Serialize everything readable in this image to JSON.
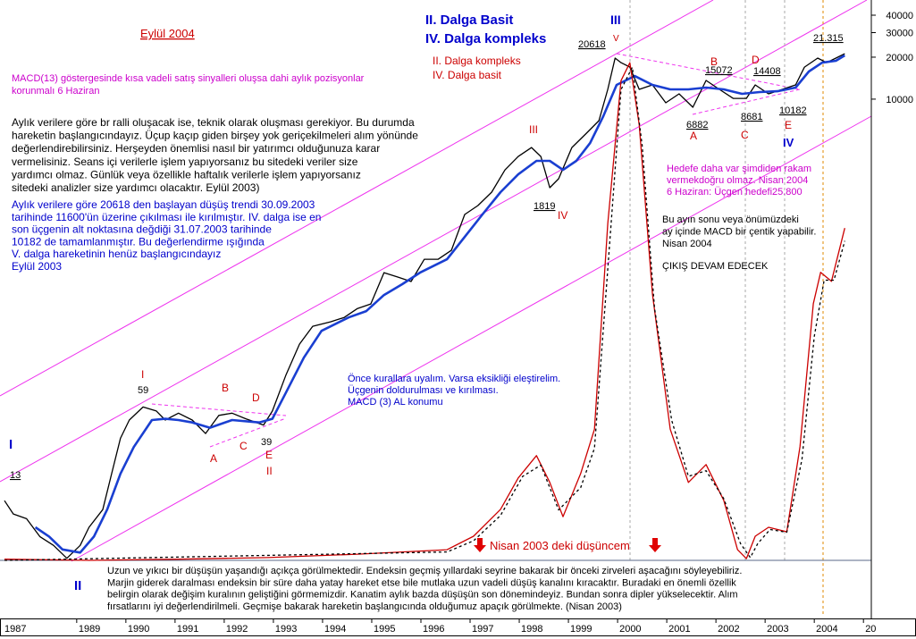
{
  "chart_data": {
    "type": "line",
    "log": true,
    "xlim": [
      1987.44,
      2005.16
    ],
    "xticks": [
      1987,
      1989,
      1990,
      1991,
      1992,
      1993,
      1994,
      1995,
      1996,
      1997,
      1998,
      1999,
      2000,
      2001,
      2002,
      2003,
      2004,
      {
        "value": 2005,
        "label": "20"
      }
    ],
    "ylim": [
      5,
      51400
    ],
    "yticks": [
      10000,
      20000,
      30000,
      40000
    ],
    "y2lim": [
      0,
      100
    ],
    "series": [
      {
        "color": "#000000",
        "x": [
          1987.53,
          1987.71,
          1987.98,
          1988.25,
          1988.53,
          1988.8,
          1989.07,
          1989.25,
          1989.53,
          1989.71,
          1989.89,
          1990.07,
          1990.35,
          1990.62,
          1990.8,
          1991.07,
          1991.35,
          1991.62,
          1991.89,
          1992.16,
          1992.44,
          1992.8,
          1992.98,
          1993.25,
          1993.53,
          1993.8,
          1994.16,
          1994.44,
          1994.71,
          1994.98,
          1995.25,
          1995.53,
          1995.8,
          1996.07,
          1996.35,
          1996.62,
          1996.89,
          1997.16,
          1997.44,
          1997.71,
          1997.98,
          1998.25,
          1998.44,
          1998.62,
          1998.8,
          1999.07,
          1999.35,
          1999.62,
          1999.8,
          1999.95,
          2000.07,
          2000.25,
          2000.44,
          2000.71,
          2000.98,
          2001.25,
          2001.53,
          2001.8,
          2002.07,
          2002.35,
          2002.62,
          2002.8,
          2003.07,
          2003.35,
          2003.62,
          2003.8,
          2004.07,
          2004.25,
          2004.44,
          2004.62
        ],
        "values": [
          13.2,
          10.6,
          9.8,
          7.3,
          6.3,
          5.1,
          6.3,
          8.5,
          11.4,
          20.6,
          37,
          50,
          62,
          58,
          50,
          56,
          50,
          40,
          54,
          56,
          51,
          46,
          58,
          104,
          175,
          235,
          253,
          272,
          315,
          340,
          570,
          530,
          492,
          711,
          711,
          824,
          1489,
          1726,
          2153,
          3110,
          3881,
          4498,
          3881,
          2318,
          2685,
          4498,
          5616,
          7012,
          11750,
          19690,
          18280,
          16980,
          11750,
          12650,
          9418,
          10910,
          8750,
          13620,
          11750,
          10130,
          10130,
          12650,
          10910,
          11750,
          12650,
          16980,
          19690,
          18280,
          19690,
          21180
        ]
      },
      {
        "color": "#1a3fd1",
        "x": [
          1988.16,
          1988.44,
          1988.71,
          1989.07,
          1989.35,
          1989.62,
          1989.89,
          1990.16,
          1990.53,
          1990.8,
          1991.07,
          1991.35,
          1991.71,
          1992.16,
          1992.71,
          1992.98,
          1993.25,
          1993.62,
          1993.98,
          1994.53,
          1994.89,
          1995.25,
          1995.62,
          1995.98,
          1996.53,
          1996.89,
          1997.25,
          1997.62,
          1997.98,
          1998.35,
          1998.62,
          1998.89,
          1999.16,
          1999.44,
          1999.71,
          1999.98,
          2000.35,
          2000.71,
          2001.07,
          2001.44,
          2001.8,
          2002.16,
          2002.53,
          2002.89,
          2003.25,
          2003.62,
          2003.89,
          2004.16,
          2004.44,
          2004.62
        ],
        "values": [
          8.5,
          7.3,
          5.9,
          5.6,
          7.3,
          11.4,
          20.6,
          32,
          50,
          51,
          50,
          48,
          44,
          50,
          48,
          51,
          78,
          140,
          218,
          272,
          302,
          394,
          471,
          570,
          711,
          1028,
          1489,
          2153,
          2890,
          3608,
          3608,
          3110,
          3608,
          4842,
          7551,
          12650,
          14650,
          12650,
          11750,
          11750,
          12100,
          11750,
          10910,
          11250,
          11400,
          12100,
          15780,
          18280,
          18830,
          20600
        ]
      },
      {
        "color": "#cc0000",
        "axis": "y2",
        "x": [
          1987.53,
          1989.25,
          1991.07,
          1992.89,
          1994.71,
          1996.53,
          1997.07,
          1997.62,
          1997.98,
          1998.35,
          1998.62,
          1998.89,
          1999.25,
          1999.53,
          1999.8,
          2000.07,
          2000.25,
          2000.44,
          2000.71,
          2001.07,
          2001.44,
          2001.8,
          2002.16,
          2002.44,
          2002.62,
          2002.8,
          2003.07,
          2003.44,
          2003.71,
          2003.98,
          2004.13,
          2004.35,
          2004.62
        ],
        "values": [
          0.2,
          0,
          0.2,
          0.5,
          1.1,
          1.9,
          4.3,
          9.1,
          14.7,
          18.7,
          13.9,
          7.8,
          15.5,
          23.4,
          60.1,
          85.6,
          88.8,
          77.7,
          47.5,
          23.4,
          13.9,
          17.1,
          10.7,
          1.9,
          0.3,
          4.3,
          5.9,
          5.1,
          20.3,
          45.8,
          51.4,
          49.8,
          59.3
        ]
      },
      {
        "color": "#000000",
        "axis": "y2",
        "dashed": true,
        "x": [
          1987.53,
          1996.53,
          1997.07,
          1997.62,
          1998.07,
          1998.44,
          1998.8,
          1999.25,
          1999.53,
          1999.8,
          2000.07,
          2000.3,
          2000.5,
          2000.75,
          2001.1,
          2001.44,
          2001.8,
          2002.16,
          2002.5,
          2002.7,
          2002.85,
          2003.1,
          2003.44,
          2003.75,
          2004.0,
          2004.2,
          2004.4,
          2004.62
        ],
        "values": [
          0,
          1.5,
          3.5,
          8,
          15,
          17,
          9,
          13,
          20,
          52,
          84,
          88,
          74,
          45,
          25,
          15,
          16,
          11,
          3,
          0.5,
          3,
          5.5,
          5,
          18,
          40,
          50,
          50,
          57
        ]
      }
    ],
    "notes": [
      {
        "color": "#cc0000",
        "lines": [
          "Eylül 2004"
        ]
      },
      {
        "color": "#0000cc",
        "lines": [
          "II.  Dalga Basit",
          "IV.  Dalga kompleks"
        ]
      },
      {
        "color": "#0000cc",
        "lines": [
          "III"
        ]
      },
      {
        "color": "#cc0000",
        "lines": [
          "II.  Dalga kompleks",
          "IV.  Dalga basit"
        ]
      },
      {
        "color": "#cc00cc",
        "lines": [
          "MACD(13) göstergesinde kısa vadeli satış sinyalleri oluşsa dahi  aylık pozisyonlar",
          "korunmalı 6 Haziran"
        ]
      },
      {
        "color": "#000000",
        "lines": [
          "Aylık verilere göre br ralli oluşacak ise, teknik olarak oluşması gerekiyor. Bu durumda",
          "hareketin başlangıcındayız. Üçup kaçıp giden birşey yok geriçekilmeleri alım yönünde",
          "değerlendirebilirsiniz. Herşeyden önemlisi nasıl bir yatırımcı olduğunuza karar",
          "vermelisiniz. Seans içi verilerle işlem yapıyorsanız bu sitedeki veriler size",
          "yardımcı olmaz. Günlük veya özellikle haftalık verilerle işlem yapıyorsanız",
          "sitedeki analizler size yardımcı olacaktır. Eylül 2003)"
        ]
      },
      {
        "color": "#0000cc",
        "lines": [
          "Aylık verilere göre 20618 den başlayan düşüş trendi 30.09.2003",
          "tarihinde 11600'ün üzerine çıkılması ile  kırılmıştır. IV. dalga ise en",
          "son üçgenin alt noktasına değdiği 31.07.2003   tarihinde",
          "10182 de tamamlanmıştır. Bu değerlendirme ışığında",
          "V. dalga hareketinin henüz başlangıcındayız",
          "Eylül 2003"
        ]
      },
      {
        "color": "#cc00cc",
        "lines": [
          "Hedefe daha var şimdiden rakam",
          "vermekdoğru olmaz. Nisan 2004",
          "6 Haziran: Üçgen hedefi25.800"
        ]
      },
      {
        "color": "#000000",
        "lines": [
          "Bu ayın sonu veya önümüzdeki",
          "ay içinde MACD bir çentik yapabilir.",
          "Nisan 2004"
        ]
      },
      {
        "color": "#000000",
        "lines": [
          "ÇIKIŞ DEVAM EDECEK"
        ]
      },
      {
        "color": "#0000cc",
        "lines": [
          "Önce kurallara uyalım. Varsa eksikliği eleştirelim.",
          "Üçgenin doldurulması ve kırılması.",
          "MACD (3) AL konumu"
        ]
      },
      {
        "color": "#cc0000",
        "lines": [
          "Nisan 2003 deki düşüncem"
        ]
      },
      {
        "color": "#000000",
        "lines": [
          "Uzun ve yıkıcı bir düşüşün yaşandığı açıkça görülmektedir. Endeksin geçmiş yıllardaki seyrine bakarak bir önceki zirveleri aşacağını söyleyebiliriz.",
          "Marjin giderek daralması endeksin bir süre daha yatay hareket etse bile  mutlaka uzun vadeli düşüş kanalını kıracaktır. Buradaki en önemli özellik",
          "belirgin olarak değişim kuralının geliştiğini görmemizdir. Kanatim aylık bazda düşüşün son dönemindeyiz. Bundan sonra dipler yükselecektir. Alım",
          "fırsatlarını iyi değerlendirilmeli. Geçmişe bakarak hareketin başlangıcında olduğumuz apaçık görülmekte. (Nisan 2003)"
        ]
      }
    ],
    "labels": [
      {
        "text": "I",
        "color": "#0000cc"
      },
      {
        "text": "II",
        "color": "#0000cc"
      },
      {
        "text": "IV",
        "color": "#0000cc"
      },
      {
        "text": "13",
        "color": "#000000"
      },
      {
        "text": "59",
        "color": "#000000"
      },
      {
        "text": "I",
        "color": "#cc0000"
      },
      {
        "text": "B",
        "color": "#cc0000"
      },
      {
        "text": "D",
        "color": "#cc0000"
      },
      {
        "text": "A",
        "color": "#cc0000"
      },
      {
        "text": "C",
        "color": "#cc0000"
      },
      {
        "text": "39",
        "color": "#000000"
      },
      {
        "text": "E",
        "color": "#cc0000"
      },
      {
        "text": "II",
        "color": "#cc0000"
      },
      {
        "text": "III",
        "color": "#cc0000"
      },
      {
        "text": "1819",
        "color": "#000000"
      },
      {
        "text": "IV",
        "color": "#cc0000"
      },
      {
        "text": "20618",
        "color": "#000000"
      },
      {
        "text": "V",
        "color": "#cc0000"
      },
      {
        "text": "15072",
        "color": "#000000"
      },
      {
        "text": "B",
        "color": "#cc0000"
      },
      {
        "text": "D",
        "color": "#cc0000"
      },
      {
        "text": "14408",
        "color": "#000000"
      },
      {
        "text": "6882",
        "color": "#000000"
      },
      {
        "text": "A",
        "color": "#cc0000"
      },
      {
        "text": "8681",
        "color": "#000000"
      },
      {
        "text": "C",
        "color": "#cc0000"
      },
      {
        "text": "10182",
        "color": "#000000"
      },
      {
        "text": "E",
        "color": "#cc0000"
      },
      {
        "text": "21.315",
        "color": "#000000"
      }
    ]
  }
}
